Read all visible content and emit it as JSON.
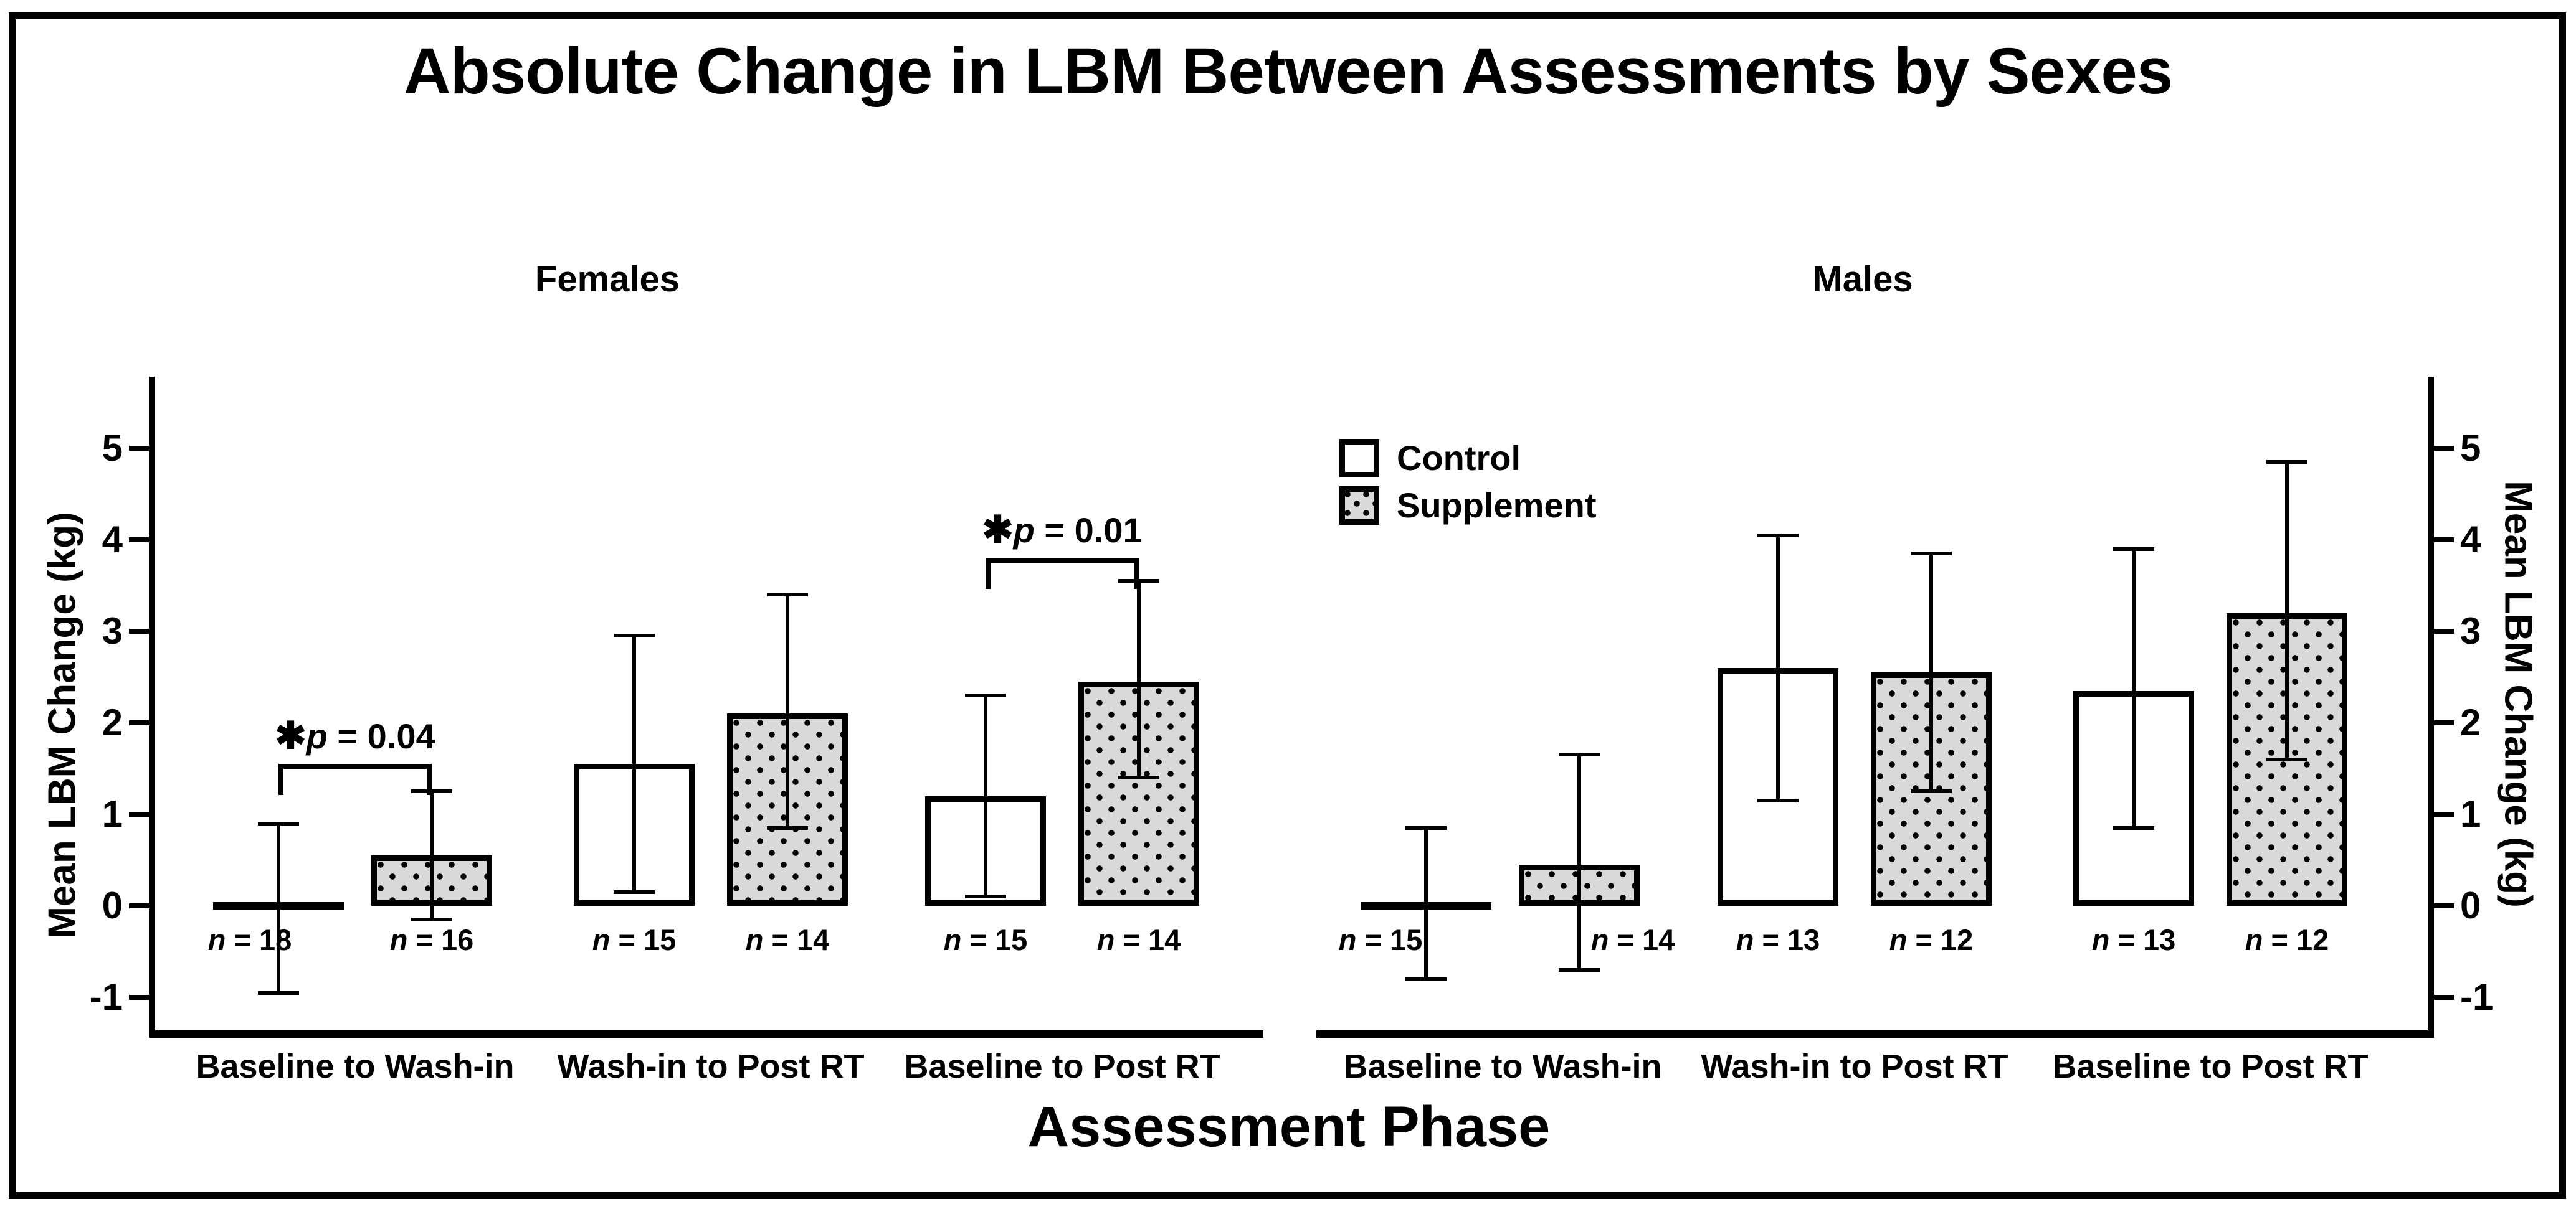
{
  "figure": {
    "title": "Absolute Change in LBM Between Assessments by Sexes",
    "x_axis_label": "Assessment Phase",
    "y_axis_label_left": "Mean LBM Change (kg)",
    "y_axis_label_right": "Mean LBM Change (kg)"
  },
  "legend": {
    "items": [
      {
        "key": "control",
        "label": "Control",
        "pattern": "plain"
      },
      {
        "key": "supplement",
        "label": "Supplement",
        "pattern": "dots"
      }
    ]
  },
  "chart_data": {
    "type": "bar",
    "grid": false,
    "ylim": [
      -1.35,
      5.6
    ],
    "yticks": [
      5,
      4,
      3,
      2,
      1,
      0,
      -1
    ],
    "y_unit": "kg",
    "categories": [
      "Baseline to Wash-in",
      "Wash-in to Post RT",
      "Baseline to Post RT"
    ],
    "n_label_var": "n",
    "panels": [
      {
        "name": "Females",
        "series": [
          {
            "name": "Control",
            "pattern": "plain",
            "values": [
              0,
              1.55,
              1.2
            ],
            "err_low": [
              -0.95,
              0.15,
              0.1
            ],
            "err_high": [
              0.9,
              2.95,
              2.3
            ],
            "n": [
              18,
              15,
              15
            ]
          },
          {
            "name": "Supplement",
            "pattern": "dots",
            "values": [
              0.55,
              2.1,
              2.45
            ],
            "err_low": [
              -0.15,
              0.85,
              1.4
            ],
            "err_high": [
              1.25,
              3.4,
              3.55
            ],
            "n": [
              16,
              14,
              14
            ]
          }
        ],
        "annotations": [
          {
            "symbol": "✱",
            "var": "p",
            "value_text": " = 0.04",
            "group_index": 0,
            "bracket_y": 1.55
          },
          {
            "symbol": "✱",
            "var": "p",
            "value_text": " = 0.01",
            "group_index": 2,
            "bracket_y": 3.8
          }
        ]
      },
      {
        "name": "Males",
        "series": [
          {
            "name": "Control",
            "pattern": "plain",
            "values": [
              0,
              2.6,
              2.35
            ],
            "err_low": [
              -0.8,
              1.15,
              0.85
            ],
            "err_high": [
              0.85,
              4.05,
              3.9
            ],
            "n": [
              15,
              13,
              13
            ]
          },
          {
            "name": "Supplement",
            "pattern": "dots",
            "values": [
              0.45,
              2.55,
              3.2
            ],
            "err_low": [
              -0.7,
              1.25,
              1.6
            ],
            "err_high": [
              1.65,
              3.85,
              4.85
            ],
            "n": [
              14,
              12,
              12
            ]
          }
        ],
        "annotations": []
      }
    ],
    "colors": {
      "foreground": "#000000",
      "background": "#ffffff",
      "supplement_fill": "#d9d9d9"
    }
  }
}
